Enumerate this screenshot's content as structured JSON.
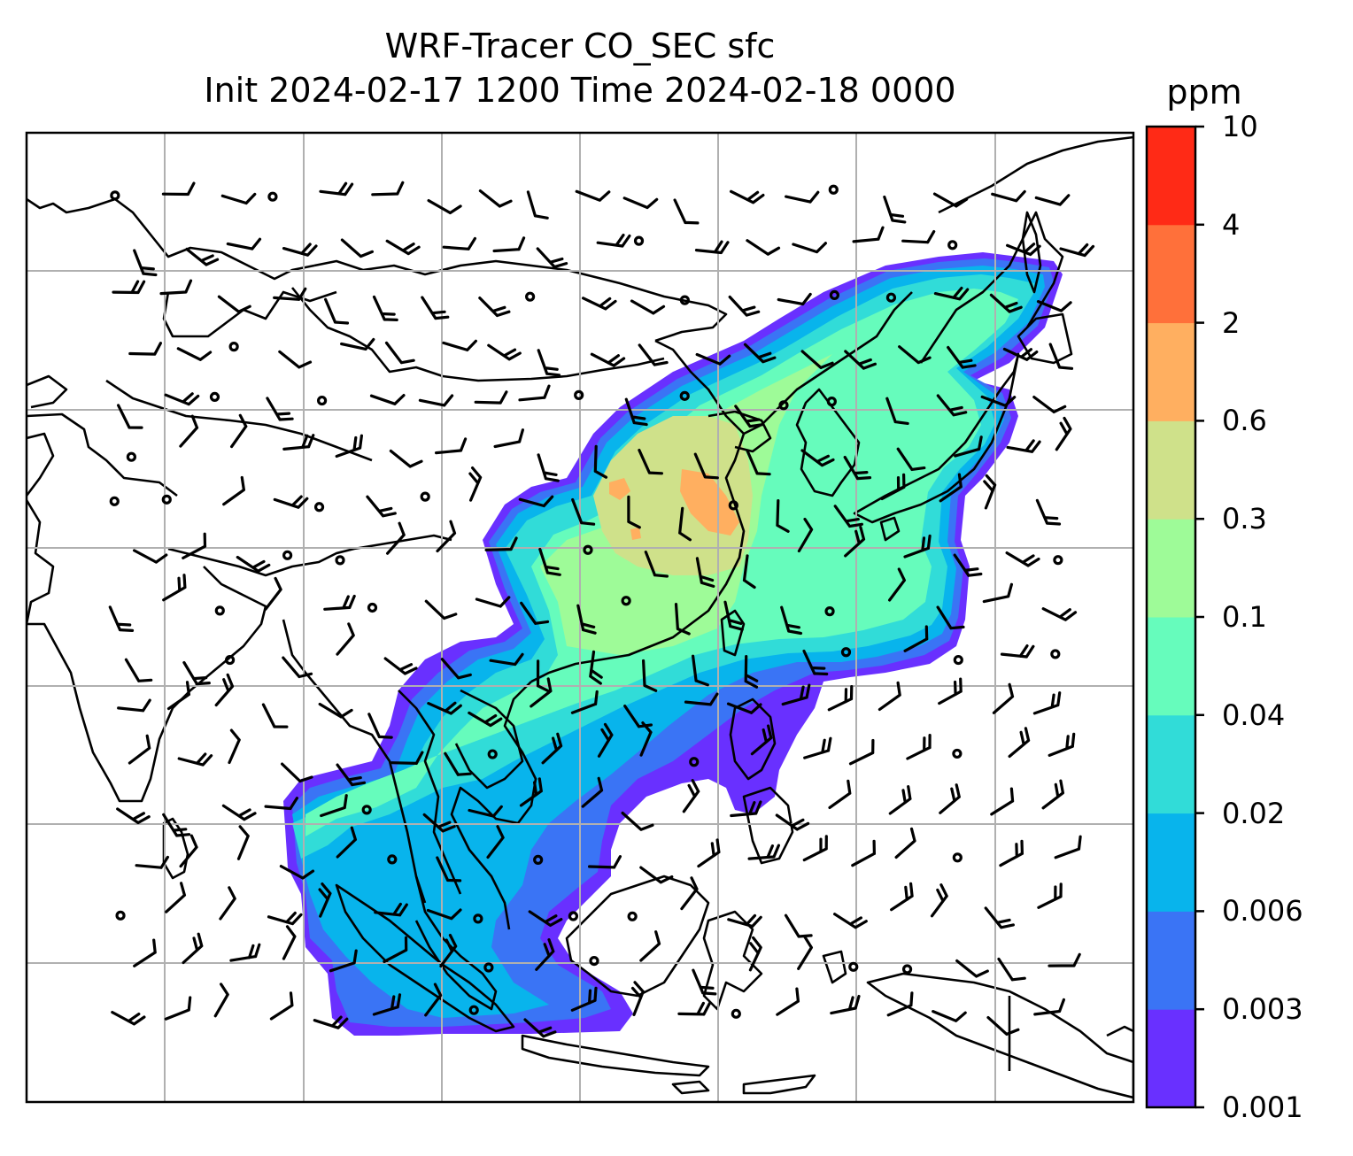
{
  "map": {
    "title_line1": "WRF-Tracer CO_SEC sfc",
    "title_line2": "Init 2024-02-17 1200 Time 2024-02-18 0000",
    "variable": "CO_SEC",
    "level": "sfc",
    "init_time": "2024-02-17 1200",
    "valid_time": "2024-02-18 0000",
    "overlay": "wind barbs",
    "region": "East and Southeast Asia",
    "gridlines": true
  },
  "colorbar": {
    "unit": "ppm",
    "levels": [
      "0.001",
      "0.003",
      "0.006",
      "0.02",
      "0.04",
      "0.1",
      "0.3",
      "0.6",
      "2",
      "4",
      "10"
    ],
    "colors": [
      "#6930ff",
      "#3a74f5",
      "#08b4ec",
      "#31dcd8",
      "#66fcbc",
      "#9efb98",
      "#cfe18a",
      "#ffaf60",
      "#ff703a",
      "#ff2a16"
    ]
  }
}
